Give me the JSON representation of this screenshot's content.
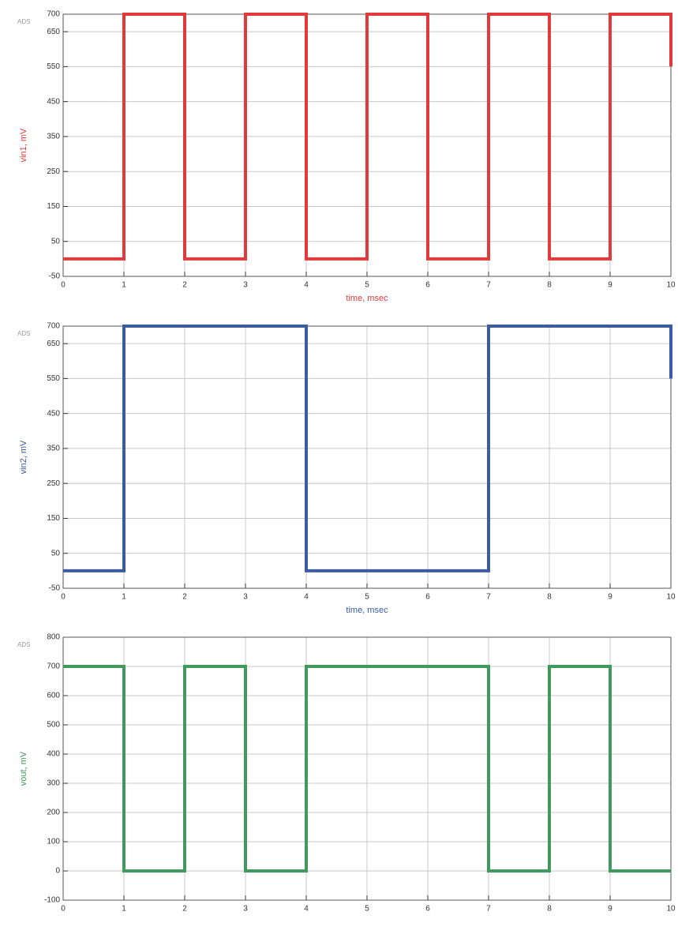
{
  "chart_data": [
    {
      "type": "line",
      "annotation": "ADS",
      "ylabel": "vin1, mV",
      "xlabel": "time, msec",
      "color": "#e23a3a",
      "grid": true,
      "x": [
        0,
        1,
        1,
        2,
        2,
        3,
        3,
        4,
        4,
        5,
        5,
        6,
        6,
        7,
        7,
        8,
        8,
        9,
        9,
        10,
        10
      ],
      "values": [
        0,
        0,
        700,
        700,
        0,
        0,
        700,
        700,
        0,
        0,
        700,
        700,
        0,
        0,
        700,
        700,
        0,
        0,
        700,
        700,
        550
      ],
      "xlim": [
        0,
        10
      ],
      "xticks": [
        0,
        1,
        2,
        3,
        4,
        5,
        6,
        7,
        8,
        9,
        10
      ],
      "ylim": [
        -50,
        700
      ],
      "yticks": [
        -50,
        50,
        150,
        250,
        350,
        450,
        550,
        650,
        700
      ]
    },
    {
      "type": "line",
      "annotation": "ADS",
      "ylabel": "vin2, mV",
      "xlabel": "time, msec",
      "color": "#3a5ba8",
      "grid": true,
      "x": [
        0,
        1,
        1,
        4,
        4,
        7,
        7,
        10,
        10
      ],
      "values": [
        0,
        0,
        700,
        700,
        0,
        0,
        700,
        700,
        550
      ],
      "xlim": [
        0,
        10
      ],
      "xticks": [
        0,
        1,
        2,
        3,
        4,
        5,
        6,
        7,
        8,
        9,
        10
      ],
      "ylim": [
        -50,
        700
      ],
      "yticks": [
        -50,
        50,
        150,
        250,
        350,
        450,
        550,
        650,
        700
      ]
    },
    {
      "type": "line",
      "annotation": "ADS",
      "ylabel": "vout, mV",
      "color": "#3f9a5c",
      "grid": true,
      "x": [
        0,
        1,
        1,
        2,
        2,
        3,
        3,
        4,
        4,
        7,
        7,
        8,
        8,
        9,
        9,
        10
      ],
      "values": [
        700,
        700,
        0,
        0,
        700,
        700,
        0,
        0,
        700,
        700,
        0,
        0,
        700,
        700,
        0,
        0
      ],
      "xlim": [
        0,
        10
      ],
      "xticks": [
        0,
        1,
        2,
        3,
        4,
        5,
        6,
        7,
        8,
        9,
        10
      ],
      "ylim": [
        -100,
        800
      ],
      "yticks": [
        -100,
        0,
        100,
        200,
        300,
        400,
        500,
        600,
        700,
        800
      ]
    }
  ]
}
